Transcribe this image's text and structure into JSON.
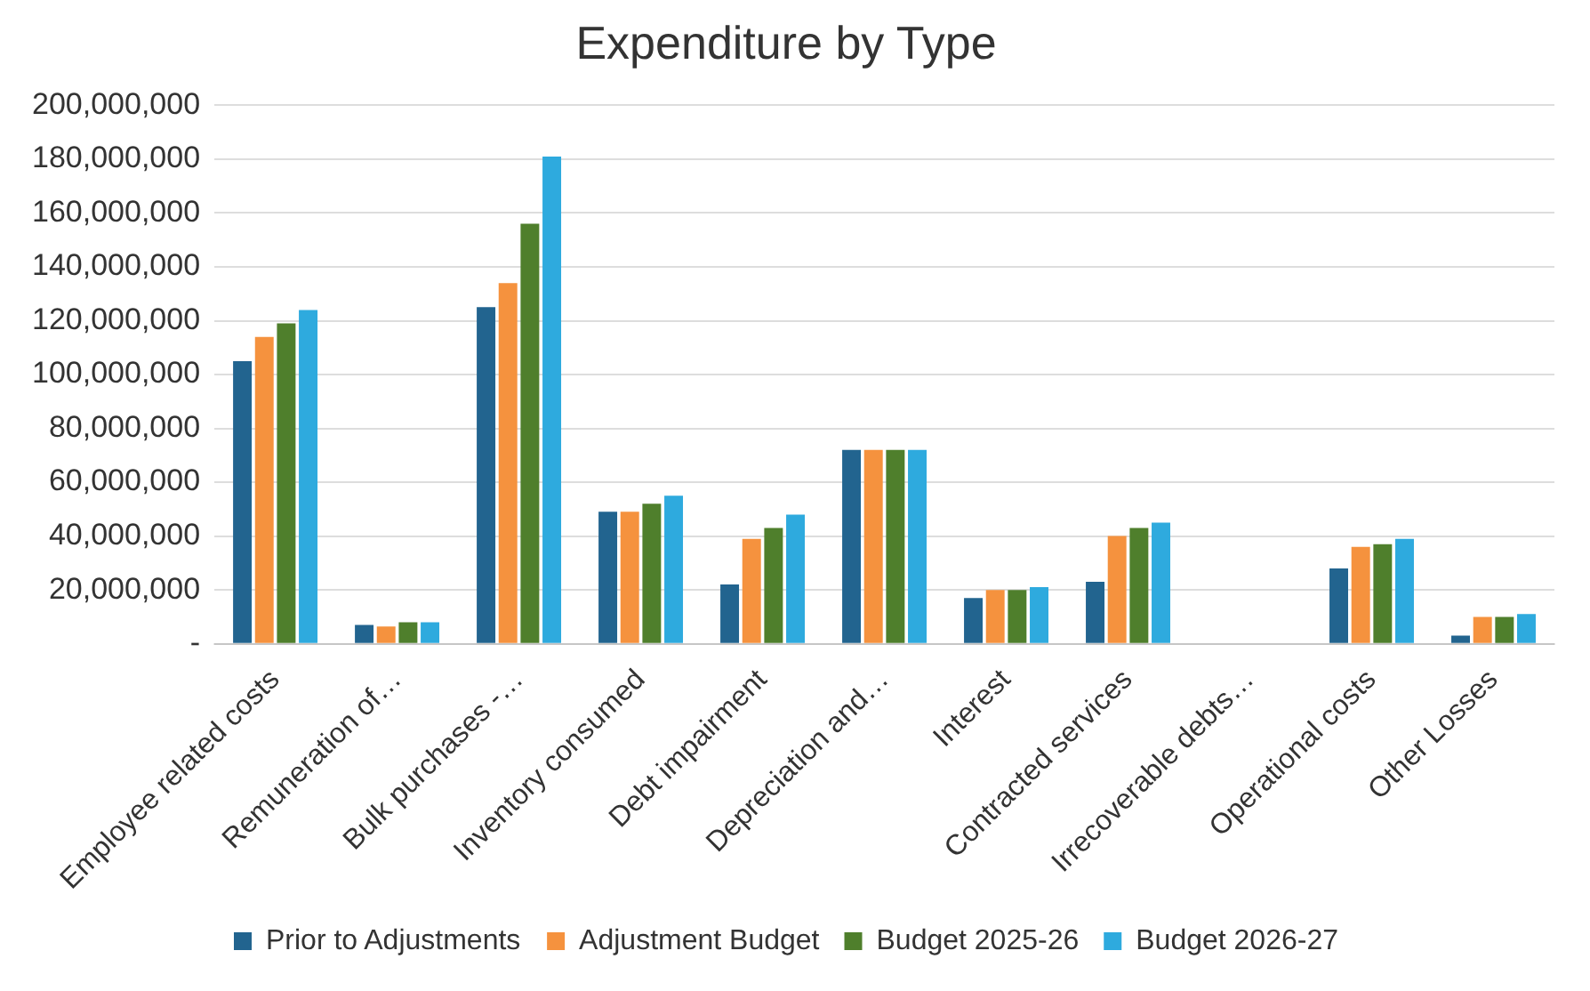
{
  "chart_data": {
    "type": "bar",
    "title": "Expenditure by Type",
    "categories": [
      "Employee related costs",
      "Remuneration of…",
      "Bulk purchases -…",
      "Inventory consumed",
      "Debt impairment",
      "Depreciation and…",
      "Interest",
      "Contracted services",
      "Irrecoverable debts…",
      "Operational costs",
      "Other Losses"
    ],
    "series": [
      {
        "name": "Prior to Adjustments",
        "color": "#22648f",
        "values": [
          105000000,
          7000000,
          125000000,
          49000000,
          22000000,
          72000000,
          17000000,
          23000000,
          0,
          28000000,
          3000000
        ]
      },
      {
        "name": "Adjustment Budget",
        "color": "#f5923e",
        "values": [
          114000000,
          6400000,
          134000000,
          49000000,
          39000000,
          72000000,
          20000000,
          40000000,
          0,
          36000000,
          10000000
        ]
      },
      {
        "name": "Budget 2025-26",
        "color": "#4f7f2c",
        "values": [
          119000000,
          8000000,
          156000000,
          52000000,
          43000000,
          72000000,
          20000000,
          43000000,
          0,
          37000000,
          10000000
        ]
      },
      {
        "name": "Budget 2026-27",
        "color": "#2eaade",
        "values": [
          124000000,
          8000000,
          181000000,
          55000000,
          48000000,
          72000000,
          21000000,
          45000000,
          0,
          39000000,
          11000000
        ]
      }
    ],
    "ylim": [
      0,
      200000000
    ],
    "yticks": [
      {
        "value": 0,
        "label": "-"
      },
      {
        "value": 20000000,
        "label": "20,000,000"
      },
      {
        "value": 40000000,
        "label": "40,000,000"
      },
      {
        "value": 60000000,
        "label": "60,000,000"
      },
      {
        "value": 80000000,
        "label": "80,000,000"
      },
      {
        "value": 100000000,
        "label": "100,000,000"
      },
      {
        "value": 120000000,
        "label": "120,000,000"
      },
      {
        "value": 140000000,
        "label": "140,000,000"
      },
      {
        "value": 160000000,
        "label": "160,000,000"
      },
      {
        "value": 180000000,
        "label": "180,000,000"
      },
      {
        "value": 200000000,
        "label": "200,000,000"
      }
    ],
    "grid": "y",
    "legend": "bottom"
  }
}
